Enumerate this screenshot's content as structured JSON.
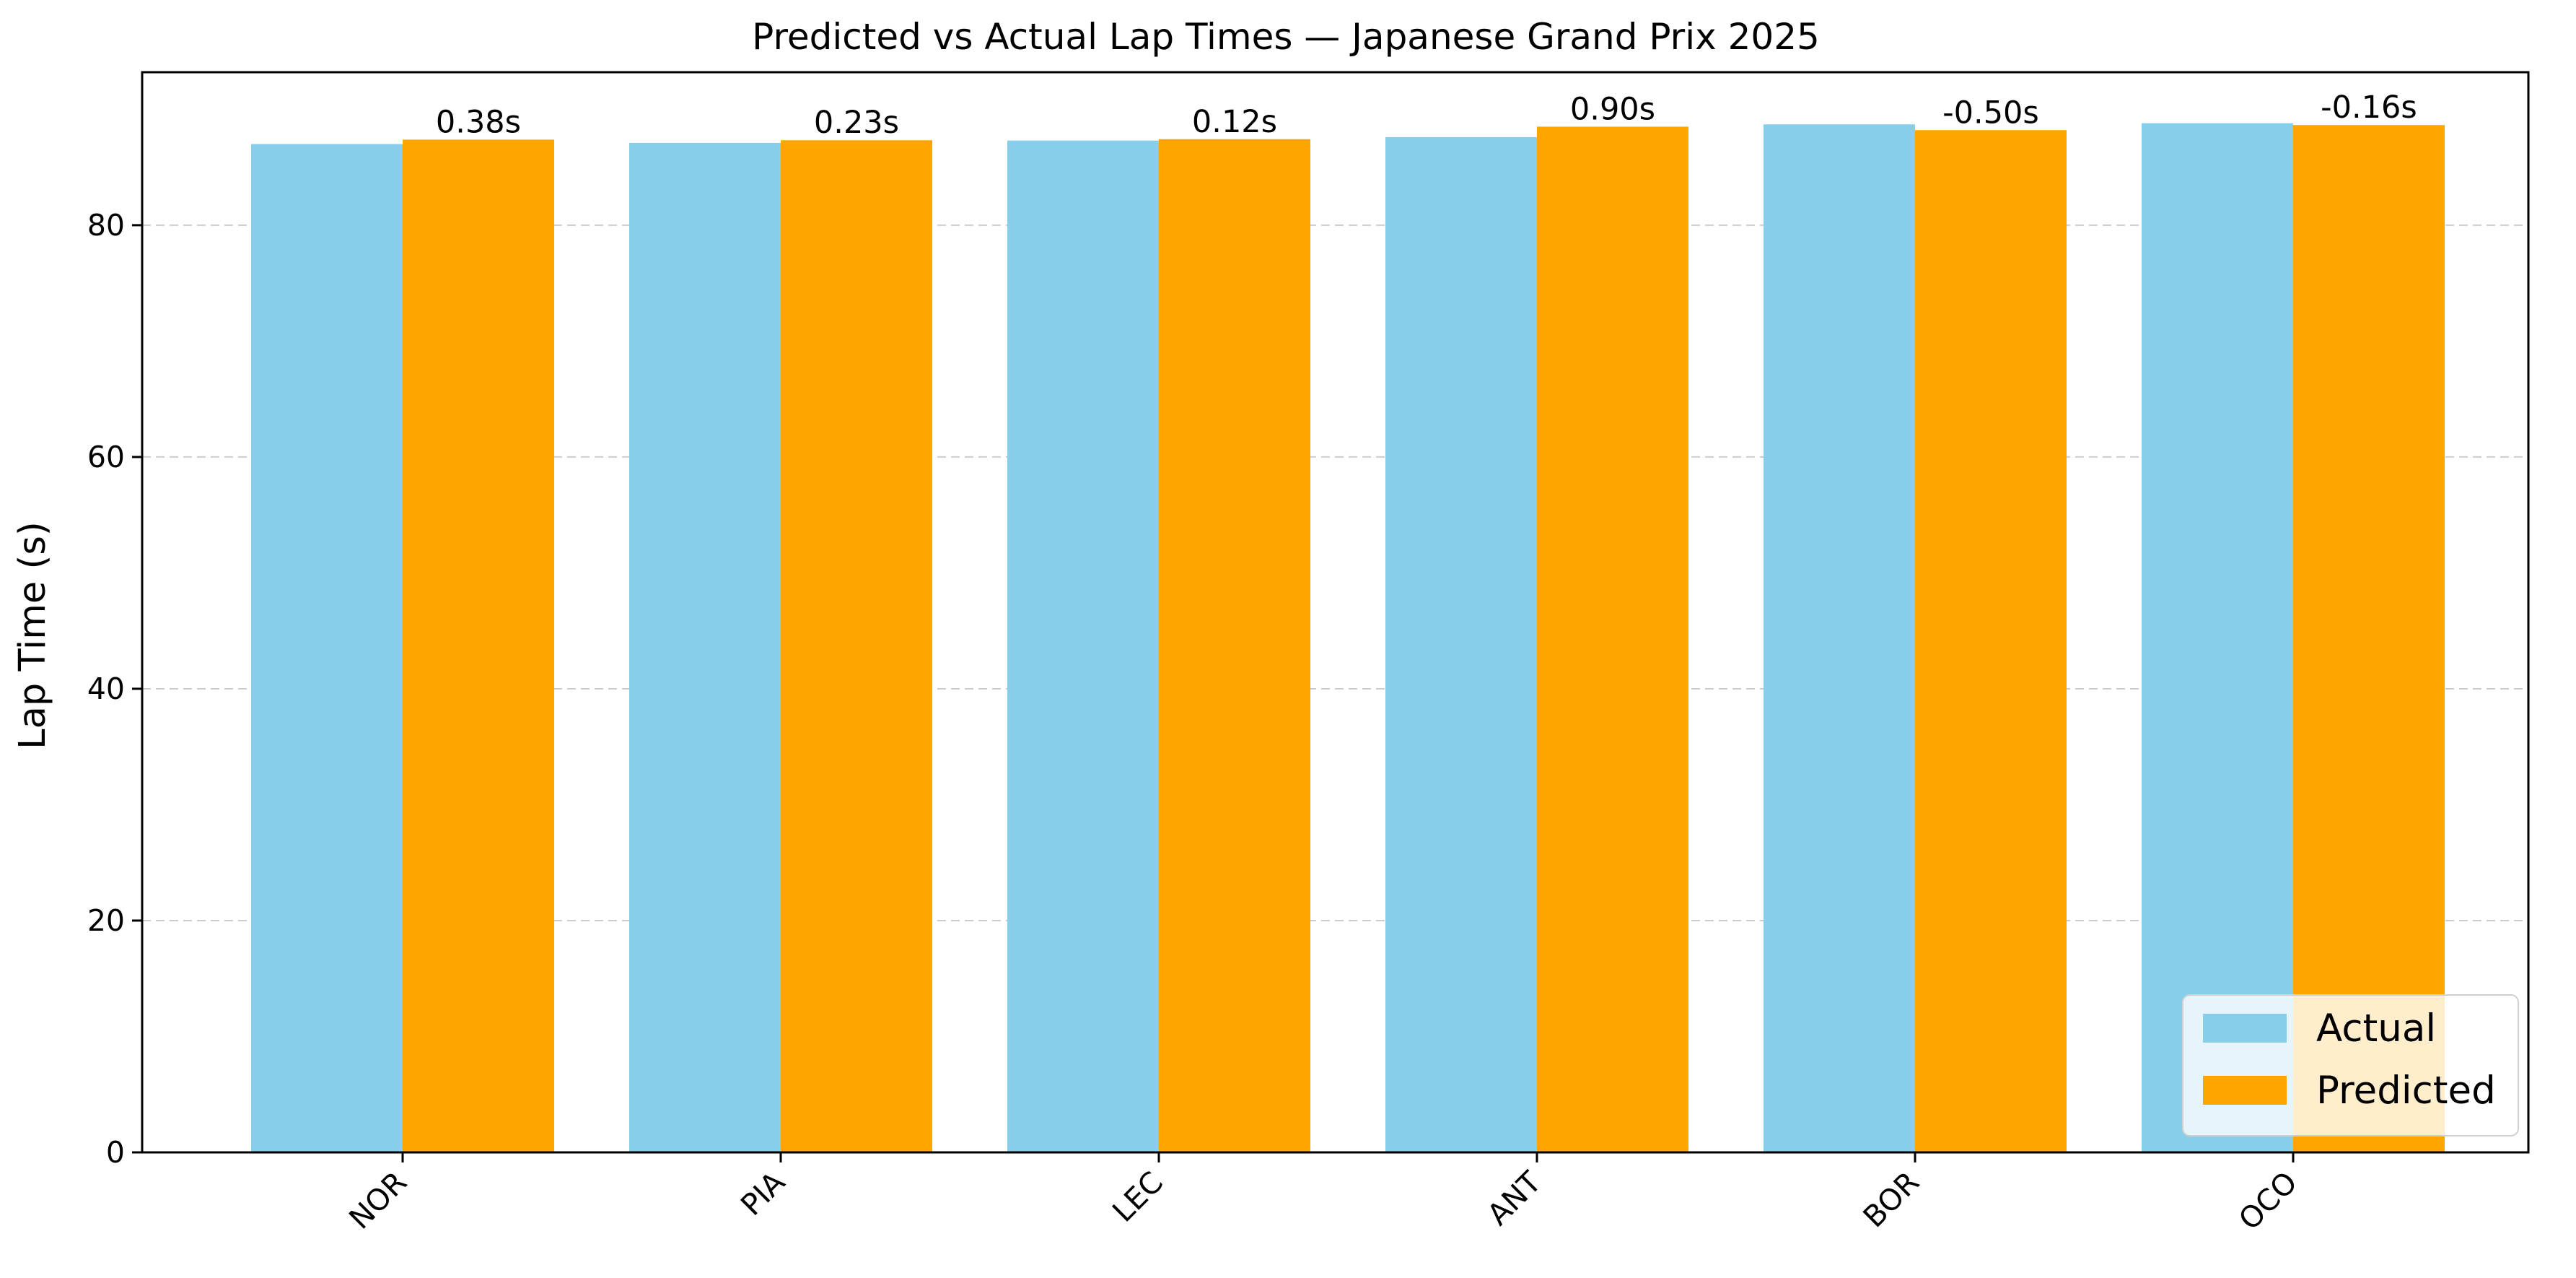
{
  "chart_data": {
    "type": "bar",
    "title": "Predicted vs Actual Lap Times — Japanese Grand Prix 2025",
    "xlabel": "",
    "ylabel": "Lap Time (s)",
    "ylim": [
      0,
      93.2
    ],
    "yticks": [
      0,
      20,
      40,
      60,
      80
    ],
    "grid": "y-dashed",
    "legend_position": "lower-right",
    "categories": [
      "NOR",
      "PIA",
      "LEC",
      "ANT",
      "BOR",
      "OCO"
    ],
    "series": [
      {
        "name": "Actual",
        "color": "#87CEEB",
        "values": [
          87.0,
          87.1,
          87.3,
          87.6,
          88.7,
          88.8
        ]
      },
      {
        "name": "Predicted",
        "color": "#FFA500",
        "values": [
          87.38,
          87.33,
          87.42,
          88.5,
          88.2,
          88.64
        ]
      }
    ],
    "data_labels": [
      "0.38s",
      "0.23s",
      "0.12s",
      "0.90s",
      "-0.50s",
      "-0.16s"
    ]
  }
}
